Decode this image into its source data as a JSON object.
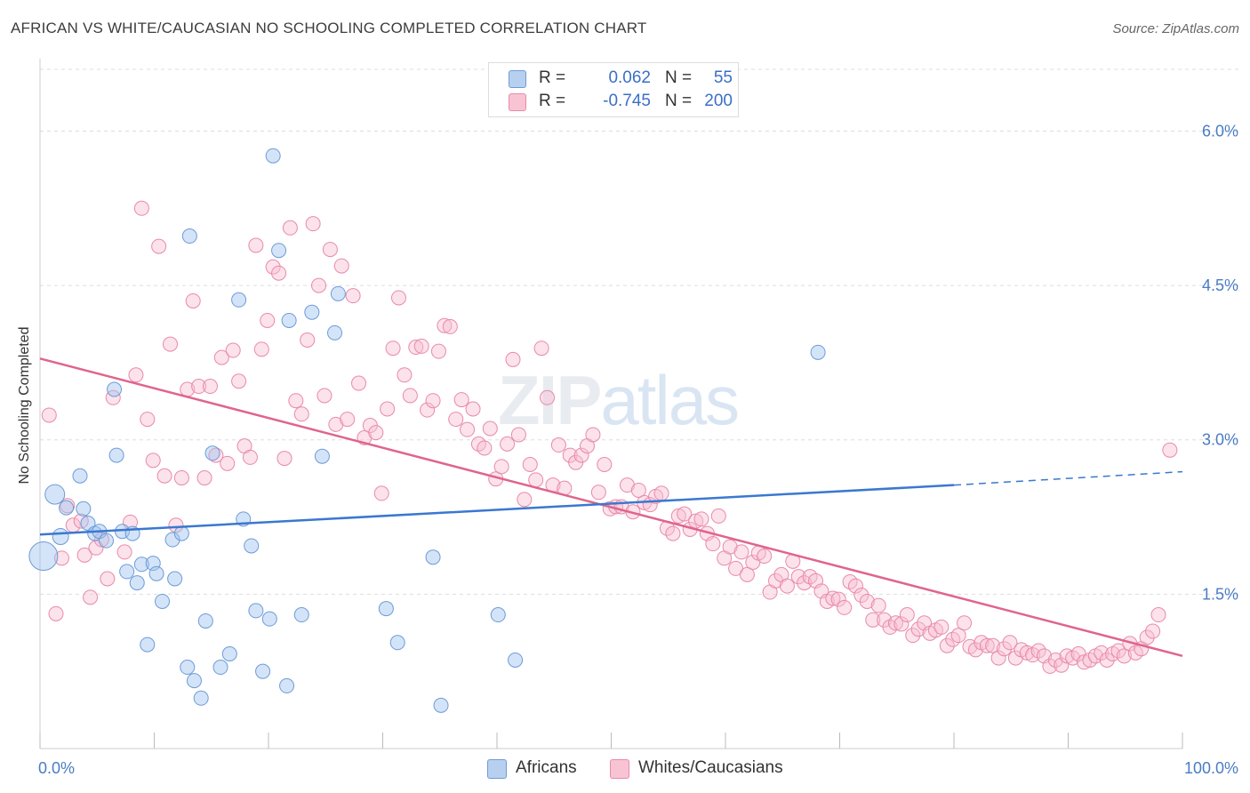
{
  "title": "AFRICAN VS WHITE/CAUCASIAN NO SCHOOLING COMPLETED CORRELATION CHART",
  "source": "Source: ZipAtlas.com",
  "watermark": {
    "bold": "ZIP",
    "thin": "atlas"
  },
  "legend": {
    "rows": [
      {
        "r_label": "R =",
        "r_value": "0.062",
        "n_label": "N =",
        "n_value": "55",
        "fill": "#b8d0f0",
        "stroke": "#6d9bd6"
      },
      {
        "r_label": "R =",
        "r_value": "-0.745",
        "n_label": "N =",
        "n_value": "200",
        "fill": "#f8c4d4",
        "stroke": "#e88aa8"
      }
    ]
  },
  "bottom_legend": [
    "Africans",
    "Whites/Caucasians"
  ],
  "colors": {
    "africans": "#6d9bd6",
    "africans_fill": "rgba(160,195,240,0.45)",
    "whites": "#e88aa8",
    "whites_fill": "rgba(248,190,210,0.45)",
    "blue_line": "#3a78d0",
    "pink_line": "#e0648c",
    "grid": "#dddddd",
    "tick_text": "#4a7cc4"
  },
  "chart_data": {
    "type": "scatter",
    "title": "AFRICAN VS WHITE/CAUCASIAN NO SCHOOLING COMPLETED CORRELATION CHART",
    "xlabel": "",
    "ylabel": "No Schooling Completed",
    "xlim": [
      0,
      100
    ],
    "ylim": [
      0,
      6.6
    ],
    "x_tick_labels": [
      "0.0%",
      "100.0%"
    ],
    "y_ticks": [
      1.5,
      3.0,
      4.5,
      6.0
    ],
    "y_tick_labels": [
      "1.5%",
      "3.0%",
      "4.5%",
      "6.0%"
    ],
    "grid": true,
    "legend_position": "top-center",
    "series": [
      {
        "name": "Africans",
        "R": 0.062,
        "N": 55,
        "trend": {
          "x": [
            0,
            80,
            100
          ],
          "y": [
            2.08,
            2.56,
            2.69
          ],
          "dashed_from_x": 80
        },
        "points": [
          [
            0.3,
            1.87,
            16
          ],
          [
            1.3,
            2.47,
            11
          ],
          [
            1.8,
            2.06,
            9
          ],
          [
            2.3,
            2.34,
            8
          ],
          [
            3.5,
            2.65,
            8
          ],
          [
            3.8,
            2.33,
            8
          ],
          [
            4.2,
            2.19,
            8
          ],
          [
            4.8,
            2.09,
            8
          ],
          [
            5.2,
            2.11,
            8
          ],
          [
            5.8,
            2.02,
            8
          ],
          [
            6.5,
            3.49,
            8
          ],
          [
            6.7,
            2.85,
            8
          ],
          [
            7.2,
            2.11,
            8
          ],
          [
            7.6,
            1.72,
            8
          ],
          [
            8.1,
            2.09,
            8
          ],
          [
            8.5,
            1.61,
            8
          ],
          [
            8.9,
            1.79,
            8
          ],
          [
            9.4,
            1.01,
            8
          ],
          [
            9.9,
            1.8,
            8
          ],
          [
            10.2,
            1.7,
            8
          ],
          [
            10.7,
            1.43,
            8
          ],
          [
            11.6,
            2.03,
            8
          ],
          [
            11.8,
            1.65,
            8
          ],
          [
            12.4,
            2.09,
            8
          ],
          [
            12.9,
            0.79,
            8
          ],
          [
            13.1,
            4.98,
            8
          ],
          [
            13.5,
            0.66,
            8
          ],
          [
            14.1,
            0.49,
            8
          ],
          [
            14.5,
            1.24,
            8
          ],
          [
            15.1,
            2.87,
            8
          ],
          [
            15.8,
            0.79,
            8
          ],
          [
            16.6,
            0.92,
            8
          ],
          [
            17.4,
            4.36,
            8
          ],
          [
            17.8,
            2.23,
            8
          ],
          [
            18.5,
            1.97,
            8
          ],
          [
            18.9,
            1.34,
            8
          ],
          [
            19.5,
            0.75,
            8
          ],
          [
            20.1,
            1.26,
            8
          ],
          [
            20.4,
            5.76,
            8
          ],
          [
            20.9,
            4.84,
            8
          ],
          [
            21.6,
            0.61,
            8
          ],
          [
            21.8,
            4.16,
            8
          ],
          [
            22.9,
            1.3,
            8
          ],
          [
            23.8,
            4.24,
            8
          ],
          [
            24.7,
            2.84,
            8
          ],
          [
            25.8,
            4.04,
            8
          ],
          [
            26.1,
            4.42,
            8
          ],
          [
            30.3,
            1.36,
            8
          ],
          [
            31.3,
            1.03,
            8
          ],
          [
            34.4,
            1.86,
            8
          ],
          [
            35.1,
            0.42,
            8
          ],
          [
            40.1,
            1.3,
            8
          ],
          [
            41.6,
            0.86,
            8
          ],
          [
            68.1,
            3.85,
            8
          ]
        ]
      },
      {
        "name": "Whites/Caucasians",
        "R": -0.745,
        "N": 200,
        "trend": {
          "x": [
            0,
            100
          ],
          "y": [
            3.79,
            0.9
          ]
        },
        "points": [
          [
            0.8,
            3.24
          ],
          [
            1.4,
            1.31
          ],
          [
            1.9,
            1.85
          ],
          [
            2.4,
            2.36
          ],
          [
            2.9,
            2.17
          ],
          [
            3.6,
            2.21
          ],
          [
            3.9,
            1.88
          ],
          [
            4.4,
            1.47
          ],
          [
            4.9,
            1.95
          ],
          [
            5.4,
            2.03
          ],
          [
            5.9,
            1.65
          ],
          [
            6.4,
            3.41
          ],
          [
            7.4,
            1.91
          ],
          [
            7.9,
            2.2
          ],
          [
            8.4,
            3.63
          ],
          [
            8.9,
            5.25
          ],
          [
            9.4,
            3.2
          ],
          [
            9.9,
            2.8
          ],
          [
            10.4,
            4.88
          ],
          [
            10.9,
            2.65
          ],
          [
            11.4,
            3.93
          ],
          [
            11.9,
            2.17
          ],
          [
            12.4,
            2.63
          ],
          [
            12.9,
            3.49
          ],
          [
            13.4,
            4.35
          ],
          [
            13.9,
            3.52
          ],
          [
            14.4,
            2.63
          ],
          [
            14.9,
            3.52
          ],
          [
            15.4,
            2.85
          ],
          [
            15.9,
            3.8
          ],
          [
            16.4,
            2.77
          ],
          [
            16.9,
            3.87
          ],
          [
            17.4,
            3.57
          ],
          [
            17.9,
            2.94
          ],
          [
            18.4,
            2.83
          ],
          [
            18.9,
            4.89
          ],
          [
            19.4,
            3.88
          ],
          [
            19.9,
            4.16
          ],
          [
            20.4,
            4.68
          ],
          [
            20.9,
            4.62
          ],
          [
            21.4,
            2.82
          ],
          [
            21.9,
            5.06
          ],
          [
            22.4,
            3.38
          ],
          [
            22.9,
            3.25
          ],
          [
            23.4,
            3.97
          ],
          [
            23.9,
            5.1
          ],
          [
            24.4,
            4.5
          ],
          [
            24.9,
            3.43
          ],
          [
            25.4,
            4.85
          ],
          [
            25.9,
            3.15
          ],
          [
            26.4,
            4.69
          ],
          [
            26.9,
            3.2
          ],
          [
            27.4,
            4.4
          ],
          [
            27.9,
            3.55
          ],
          [
            28.4,
            3.02
          ],
          [
            28.9,
            3.14
          ],
          [
            29.4,
            3.07
          ],
          [
            29.9,
            2.48
          ],
          [
            30.4,
            3.3
          ],
          [
            30.9,
            3.89
          ],
          [
            31.4,
            4.38
          ],
          [
            31.9,
            3.63
          ],
          [
            32.4,
            3.43
          ],
          [
            32.9,
            3.9
          ],
          [
            33.4,
            3.91
          ],
          [
            33.9,
            3.29
          ],
          [
            34.4,
            3.38
          ],
          [
            34.9,
            3.86
          ],
          [
            35.4,
            4.11
          ],
          [
            35.9,
            4.1
          ],
          [
            36.4,
            3.2
          ],
          [
            36.9,
            3.39
          ],
          [
            37.4,
            3.1
          ],
          [
            37.9,
            3.3
          ],
          [
            38.4,
            2.96
          ],
          [
            38.9,
            2.92
          ],
          [
            39.4,
            3.11
          ],
          [
            39.9,
            2.62
          ],
          [
            40.4,
            2.74
          ],
          [
            40.9,
            2.96
          ],
          [
            41.4,
            3.78
          ],
          [
            41.9,
            3.05
          ],
          [
            42.4,
            2.42
          ],
          [
            42.9,
            2.76
          ],
          [
            43.4,
            2.61
          ],
          [
            43.9,
            3.89
          ],
          [
            44.4,
            3.41
          ],
          [
            44.9,
            2.56
          ],
          [
            45.4,
            2.95
          ],
          [
            45.9,
            2.53
          ],
          [
            46.4,
            2.85
          ],
          [
            46.9,
            2.78
          ],
          [
            47.4,
            2.85
          ],
          [
            47.9,
            2.94
          ],
          [
            48.4,
            3.05
          ],
          [
            48.9,
            2.49
          ],
          [
            49.4,
            2.76
          ],
          [
            49.9,
            2.33
          ],
          [
            50.4,
            2.35
          ],
          [
            50.9,
            2.35
          ],
          [
            51.4,
            2.56
          ],
          [
            51.9,
            2.3
          ],
          [
            52.4,
            2.51
          ],
          [
            52.9,
            2.39
          ],
          [
            53.4,
            2.37
          ],
          [
            53.9,
            2.45
          ],
          [
            54.4,
            2.48
          ],
          [
            54.9,
            2.14
          ],
          [
            55.4,
            2.09
          ],
          [
            55.9,
            2.26
          ],
          [
            56.4,
            2.28
          ],
          [
            56.9,
            2.13
          ],
          [
            57.4,
            2.21
          ],
          [
            57.9,
            2.23
          ],
          [
            58.4,
            2.09
          ],
          [
            58.9,
            1.99
          ],
          [
            59.4,
            2.26
          ],
          [
            59.9,
            1.85
          ],
          [
            60.4,
            1.96
          ],
          [
            60.9,
            1.75
          ],
          [
            61.4,
            1.91
          ],
          [
            61.9,
            1.69
          ],
          [
            62.4,
            1.81
          ],
          [
            62.9,
            1.9
          ],
          [
            63.4,
            1.87
          ],
          [
            63.9,
            1.52
          ],
          [
            64.4,
            1.63
          ],
          [
            64.9,
            1.69
          ],
          [
            65.4,
            1.58
          ],
          [
            65.9,
            1.82
          ],
          [
            66.4,
            1.67
          ],
          [
            66.9,
            1.61
          ],
          [
            67.4,
            1.67
          ],
          [
            67.9,
            1.63
          ],
          [
            68.4,
            1.53
          ],
          [
            68.9,
            1.43
          ],
          [
            69.4,
            1.46
          ],
          [
            69.9,
            1.45
          ],
          [
            70.4,
            1.37
          ],
          [
            70.9,
            1.62
          ],
          [
            71.4,
            1.58
          ],
          [
            71.9,
            1.49
          ],
          [
            72.4,
            1.43
          ],
          [
            72.9,
            1.25
          ],
          [
            73.4,
            1.39
          ],
          [
            73.9,
            1.25
          ],
          [
            74.4,
            1.18
          ],
          [
            74.9,
            1.22
          ],
          [
            75.4,
            1.21
          ],
          [
            75.9,
            1.3
          ],
          [
            76.4,
            1.1
          ],
          [
            76.9,
            1.16
          ],
          [
            77.4,
            1.22
          ],
          [
            77.9,
            1.12
          ],
          [
            78.4,
            1.15
          ],
          [
            78.9,
            1.18
          ],
          [
            79.4,
            1.0
          ],
          [
            79.9,
            1.06
          ],
          [
            80.4,
            1.1
          ],
          [
            80.9,
            1.22
          ],
          [
            81.4,
            0.99
          ],
          [
            81.9,
            0.96
          ],
          [
            82.4,
            1.03
          ],
          [
            82.9,
            1.0
          ],
          [
            83.4,
            1.0
          ],
          [
            83.9,
            0.88
          ],
          [
            84.4,
            0.97
          ],
          [
            84.9,
            1.03
          ],
          [
            85.4,
            0.88
          ],
          [
            85.9,
            0.96
          ],
          [
            86.4,
            0.93
          ],
          [
            86.9,
            0.91
          ],
          [
            87.4,
            0.95
          ],
          [
            87.9,
            0.9
          ],
          [
            88.4,
            0.8
          ],
          [
            88.9,
            0.86
          ],
          [
            89.4,
            0.81
          ],
          [
            89.9,
            0.9
          ],
          [
            90.4,
            0.88
          ],
          [
            90.9,
            0.92
          ],
          [
            91.4,
            0.84
          ],
          [
            91.9,
            0.86
          ],
          [
            92.4,
            0.9
          ],
          [
            92.9,
            0.93
          ],
          [
            93.4,
            0.86
          ],
          [
            93.9,
            0.92
          ],
          [
            94.4,
            0.95
          ],
          [
            94.9,
            0.9
          ],
          [
            95.4,
            1.02
          ],
          [
            95.9,
            0.93
          ],
          [
            96.4,
            0.97
          ],
          [
            96.9,
            1.08
          ],
          [
            97.4,
            1.14
          ],
          [
            97.9,
            1.3
          ],
          [
            98.9,
            2.9
          ]
        ]
      }
    ]
  }
}
